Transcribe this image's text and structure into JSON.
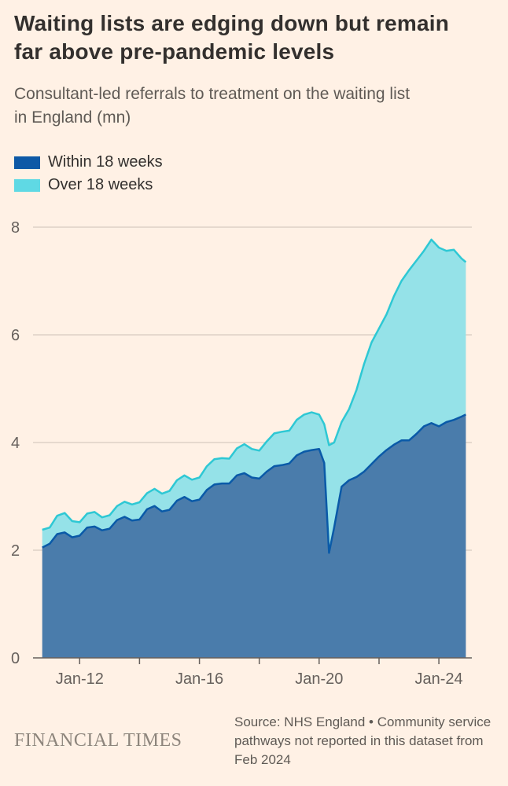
{
  "header": {
    "title_line1": "Waiting lists are edging down but remain",
    "title_line2": "far above pre-pandemic levels",
    "subtitle_line1": "Consultant-led referrals to treatment on the waiting list",
    "subtitle_line2": "in England (mn)"
  },
  "legend": [
    {
      "label": "Within 18 weeks",
      "color": "#0d59a6"
    },
    {
      "label": "Over 18 weeks",
      "color": "#5fd9e4"
    }
  ],
  "footer": {
    "brand": "FINANCIAL TIMES",
    "source": "Source: NHS England • Community service pathways not reported in this dataset from Feb 2024"
  },
  "chart_data": {
    "type": "area",
    "stacked": true,
    "title": "Waiting lists are edging down but remain far above pre-pandemic levels",
    "subtitle": "Consultant-led referrals to treatment on the waiting list in England (mn)",
    "xlabel": "",
    "ylabel": "mn",
    "xlim": [
      2010.6,
      2025.1
    ],
    "ylim": [
      0,
      8
    ],
    "yticks": [
      0,
      2,
      4,
      6,
      8
    ],
    "xticks": [
      {
        "x": 2012,
        "label": "Jan-12"
      },
      {
        "x": 2016,
        "label": "Jan-16"
      },
      {
        "x": 2020,
        "label": "Jan-20"
      },
      {
        "x": 2024,
        "label": "Jan-24"
      }
    ],
    "xticks_minor": [
      2012,
      2014,
      2016,
      2018,
      2020,
      2022,
      2024
    ],
    "grid": "horizontal",
    "legend_position": "top-left",
    "colors": {
      "grid": "#ccc1b7",
      "axis": "#66605c",
      "tick_text": "#66605c",
      "within_fill": "#4a7cab",
      "within_line": "#0a5aa8",
      "over_fill": "#95e2e8",
      "over_line": "#2ec8d4"
    },
    "x": [
      2010.75,
      2011,
      2011.25,
      2011.5,
      2011.75,
      2012,
      2012.25,
      2012.5,
      2012.75,
      2013,
      2013.25,
      2013.5,
      2013.75,
      2014,
      2014.25,
      2014.5,
      2014.75,
      2015,
      2015.25,
      2015.5,
      2015.75,
      2016,
      2016.25,
      2016.5,
      2016.75,
      2017,
      2017.25,
      2017.5,
      2017.75,
      2018,
      2018.25,
      2018.5,
      2018.75,
      2019,
      2019.25,
      2019.5,
      2019.75,
      2020,
      2020.17,
      2020.33,
      2020.5,
      2020.75,
      2021,
      2021.25,
      2021.5,
      2021.75,
      2022,
      2022.25,
      2022.5,
      2022.75,
      2023,
      2023.25,
      2023.5,
      2023.75,
      2024,
      2024.25,
      2024.5,
      2024.75,
      2024.9
    ],
    "series": [
      {
        "name": "Within 18 weeks",
        "values": [
          2.05,
          2.12,
          2.3,
          2.33,
          2.24,
          2.27,
          2.42,
          2.44,
          2.37,
          2.4,
          2.56,
          2.62,
          2.55,
          2.57,
          2.76,
          2.82,
          2.72,
          2.75,
          2.92,
          2.99,
          2.91,
          2.94,
          3.12,
          3.22,
          3.24,
          3.24,
          3.39,
          3.43,
          3.35,
          3.33,
          3.46,
          3.56,
          3.58,
          3.61,
          3.76,
          3.83,
          3.86,
          3.88,
          3.62,
          1.95,
          2.42,
          3.18,
          3.3,
          3.36,
          3.46,
          3.6,
          3.74,
          3.86,
          3.96,
          4.04,
          4.04,
          4.16,
          4.3,
          4.36,
          4.3,
          4.38,
          4.42,
          4.48,
          4.52
        ]
      },
      {
        "name": "Over 18 weeks",
        "values": [
          0.33,
          0.3,
          0.34,
          0.36,
          0.3,
          0.25,
          0.26,
          0.27,
          0.24,
          0.25,
          0.26,
          0.28,
          0.3,
          0.32,
          0.3,
          0.32,
          0.33,
          0.35,
          0.38,
          0.4,
          0.4,
          0.41,
          0.44,
          0.47,
          0.47,
          0.46,
          0.5,
          0.54,
          0.53,
          0.52,
          0.56,
          0.61,
          0.62,
          0.61,
          0.66,
          0.69,
          0.7,
          0.64,
          0.72,
          2.0,
          1.58,
          1.2,
          1.32,
          1.62,
          2.0,
          2.26,
          2.38,
          2.52,
          2.76,
          2.96,
          3.16,
          3.22,
          3.26,
          3.41,
          3.32,
          3.18,
          3.16,
          2.94,
          2.83
        ]
      }
    ]
  }
}
